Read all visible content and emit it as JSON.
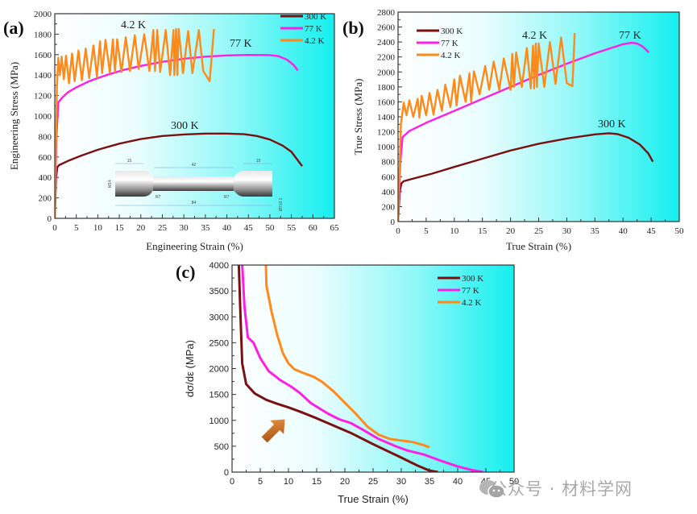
{
  "colors": {
    "c300K": "#7a1010",
    "c77K": "#ff1ee6",
    "c4K": "#ff8a1a",
    "bg_left": "#ffffff",
    "bg_right": "#18f0f0",
    "arrow": "#d8742a"
  },
  "watermark": {
    "text": "公众号 · 材料学网",
    "icon": "wechat-icon"
  },
  "chart_data": [
    {
      "panel": "(a)",
      "type": "line",
      "xlabel": "Engineering Strain (%)",
      "ylabel": "Engineering Stress (MPa)",
      "xlim": [
        0,
        65
      ],
      "ylim": [
        0,
        2000
      ],
      "xticks": [
        0,
        5,
        10,
        15,
        20,
        25,
        30,
        35,
        40,
        45,
        50,
        55,
        60,
        65
      ],
      "yticks": [
        0,
        200,
        400,
        600,
        800,
        1000,
        1200,
        1400,
        1600,
        1800,
        2000
      ],
      "legend": {
        "placement": "top-right",
        "entries": [
          "300 K",
          "77 K",
          "4.2 K"
        ]
      },
      "annotations": [
        {
          "text": "4.2 K",
          "x": 23,
          "y": 1870
        },
        {
          "text": "77 K",
          "x": 45,
          "y": 1650
        },
        {
          "text": "300 K",
          "x": 30,
          "y": 870
        }
      ],
      "inset": {
        "description": "dog-bone tensile specimen drawing",
        "dims": [
          "15",
          "42",
          "15",
          "R7",
          "R7",
          "84",
          "M14",
          "Ø7±0.1"
        ]
      },
      "series": [
        {
          "name": "300 K",
          "color_key": "c300K",
          "points": [
            [
              0,
              0
            ],
            [
              0.3,
              400
            ],
            [
              0.6,
              500
            ],
            [
              1,
              520
            ],
            [
              3,
              560
            ],
            [
              6,
              610
            ],
            [
              10,
              670
            ],
            [
              15,
              730
            ],
            [
              20,
              775
            ],
            [
              25,
              805
            ],
            [
              30,
              820
            ],
            [
              35,
              828
            ],
            [
              40,
              828
            ],
            [
              44,
              822
            ],
            [
              47,
              805
            ],
            [
              50,
              770
            ],
            [
              53,
              710
            ],
            [
              55,
              650
            ],
            [
              57.5,
              510
            ]
          ]
        },
        {
          "name": "77 K",
          "color_key": "c77K",
          "points": [
            [
              0,
              0
            ],
            [
              0.4,
              800
            ],
            [
              0.8,
              1130
            ],
            [
              1.5,
              1170
            ],
            [
              3,
              1230
            ],
            [
              5,
              1280
            ],
            [
              8,
              1340
            ],
            [
              12,
              1400
            ],
            [
              16,
              1450
            ],
            [
              20,
              1490
            ],
            [
              25,
              1530
            ],
            [
              30,
              1560
            ],
            [
              35,
              1580
            ],
            [
              40,
              1592
            ],
            [
              45,
              1597
            ],
            [
              50,
              1595
            ],
            [
              52,
              1585
            ],
            [
              54,
              1550
            ],
            [
              55.5,
              1500
            ],
            [
              56.5,
              1445
            ]
          ]
        },
        {
          "name": "4.2 K",
          "color_key": "c4K",
          "points": [
            [
              0,
              0
            ],
            [
              0.5,
              1300
            ],
            [
              0.8,
              1570
            ],
            [
              1.2,
              1400
            ],
            [
              1.6,
              1580
            ],
            [
              2.1,
              1360
            ],
            [
              2.6,
              1590
            ],
            [
              3.3,
              1320
            ],
            [
              4,
              1610
            ],
            [
              4.6,
              1340
            ],
            [
              5.5,
              1640
            ],
            [
              6.3,
              1350
            ],
            [
              7.2,
              1660
            ],
            [
              8,
              1370
            ],
            [
              9,
              1690
            ],
            [
              9.8,
              1380
            ],
            [
              10.5,
              1730
            ],
            [
              11,
              1420
            ],
            [
              11.8,
              1745
            ],
            [
              12.8,
              1420
            ],
            [
              13.5,
              1750
            ],
            [
              14,
              1430
            ],
            [
              14.5,
              1750
            ],
            [
              15.5,
              1430
            ],
            [
              16.5,
              1770
            ],
            [
              17.5,
              1440
            ],
            [
              18.6,
              1790
            ],
            [
              19.5,
              1460
            ],
            [
              20.8,
              1800
            ],
            [
              22,
              1440
            ],
            [
              22.9,
              1840
            ],
            [
              23.3,
              1440
            ],
            [
              23.8,
              1840
            ],
            [
              24.5,
              1430
            ],
            [
              25.8,
              1840
            ],
            [
              26.8,
              1400
            ],
            [
              27.6,
              1840
            ],
            [
              27.8,
              1400
            ],
            [
              28.2,
              1850
            ],
            [
              28.5,
              1400
            ],
            [
              28.8,
              1850
            ],
            [
              29.8,
              1420
            ],
            [
              31,
              1830
            ],
            [
              32,
              1420
            ],
            [
              33.5,
              1840
            ],
            [
              34.5,
              1440
            ],
            [
              36,
              1340
            ],
            [
              37,
              1850
            ]
          ]
        }
      ]
    },
    {
      "panel": "(b)",
      "type": "line",
      "xlabel": "True Strain (%)",
      "ylabel": "True Stress (MPa)",
      "xlim": [
        0,
        50
      ],
      "ylim": [
        0,
        2800
      ],
      "xticks": [
        0,
        5,
        10,
        15,
        20,
        25,
        30,
        35,
        40,
        45,
        50
      ],
      "yticks": [
        0,
        200,
        400,
        600,
        800,
        1000,
        1200,
        1400,
        1600,
        1800,
        2000,
        2200,
        2400,
        2600,
        2800
      ],
      "legend": {
        "placement": "top-left",
        "entries": [
          "300 K",
          "77 K",
          "4.2 K"
        ]
      },
      "annotations": [
        {
          "text": "4.2 K",
          "x": 24,
          "y": 2480
        },
        {
          "text": "77 K",
          "x": 41,
          "y": 2480
        },
        {
          "text": "300 K",
          "x": 38,
          "y": 1290
        }
      ],
      "series": [
        {
          "name": "300 K",
          "color_key": "c300K",
          "points": [
            [
              0,
              0
            ],
            [
              0.3,
              400
            ],
            [
              0.6,
              510
            ],
            [
              1,
              540
            ],
            [
              3,
              580
            ],
            [
              6,
              640
            ],
            [
              10,
              730
            ],
            [
              15,
              840
            ],
            [
              20,
              950
            ],
            [
              25,
              1040
            ],
            [
              30,
              1110
            ],
            [
              35,
              1165
            ],
            [
              37.5,
              1180
            ],
            [
              39,
              1170
            ],
            [
              41,
              1120
            ],
            [
              43,
              1030
            ],
            [
              44.5,
              910
            ],
            [
              45.3,
              800
            ]
          ]
        },
        {
          "name": "77 K",
          "color_key": "c77K",
          "points": [
            [
              0,
              0
            ],
            [
              0.4,
              800
            ],
            [
              0.8,
              1130
            ],
            [
              2,
              1210
            ],
            [
              5,
              1320
            ],
            [
              10,
              1480
            ],
            [
              15,
              1640
            ],
            [
              20,
              1800
            ],
            [
              25,
              1960
            ],
            [
              30,
              2110
            ],
            [
              35,
              2250
            ],
            [
              40,
              2370
            ],
            [
              41.5,
              2390
            ],
            [
              42.5,
              2380
            ],
            [
              43.5,
              2340
            ],
            [
              44.6,
              2260
            ]
          ]
        },
        {
          "name": "4.2 K",
          "color_key": "c4K",
          "points": [
            [
              0,
              0
            ],
            [
              0.5,
              1300
            ],
            [
              1,
              1590
            ],
            [
              1.5,
              1420
            ],
            [
              2,
              1620
            ],
            [
              2.7,
              1400
            ],
            [
              3.5,
              1640
            ],
            [
              3.8,
              1390
            ],
            [
              4.2,
              1680
            ],
            [
              5,
              1420
            ],
            [
              5.6,
              1720
            ],
            [
              6.3,
              1430
            ],
            [
              7,
              1760
            ],
            [
              7.8,
              1480
            ],
            [
              8.4,
              1830
            ],
            [
              9.3,
              1530
            ],
            [
              10,
              1900
            ],
            [
              10.4,
              1550
            ],
            [
              11,
              1950
            ],
            [
              12,
              1600
            ],
            [
              12.7,
              1980
            ],
            [
              13,
              1600
            ],
            [
              13.5,
              2010
            ],
            [
              14.5,
              1700
            ],
            [
              15.5,
              2080
            ],
            [
              16.2,
              1760
            ],
            [
              17,
              2140
            ],
            [
              18,
              1760
            ],
            [
              18.8,
              2180
            ],
            [
              20,
              1760
            ],
            [
              20.3,
              2240
            ],
            [
              20.6,
              1800
            ],
            [
              21,
              2260
            ],
            [
              22,
              1800
            ],
            [
              22.9,
              2320
            ],
            [
              23.6,
              1780
            ],
            [
              24,
              2350
            ],
            [
              24.2,
              1780
            ],
            [
              24.5,
              2380
            ],
            [
              24.7,
              1800
            ],
            [
              25,
              2380
            ],
            [
              26,
              1800
            ],
            [
              27,
              2400
            ],
            [
              28,
              1840
            ],
            [
              29,
              2460
            ],
            [
              30,
              1850
            ],
            [
              31,
              1810
            ],
            [
              31.4,
              2520
            ]
          ]
        }
      ]
    },
    {
      "panel": "(c)",
      "type": "line",
      "xlabel": "True Strain (%)",
      "ylabel": "dσ/dε (MPa)",
      "xlim": [
        0,
        50
      ],
      "ylim": [
        0,
        4000
      ],
      "xticks": [
        0,
        5,
        10,
        15,
        20,
        25,
        30,
        35,
        40,
        45,
        50
      ],
      "yticks": [
        0,
        500,
        1000,
        1500,
        2000,
        2500,
        3000,
        3500,
        4000
      ],
      "legend": {
        "placement": "top-right",
        "entries": [
          "300 K",
          "77 K",
          "4.2 K"
        ]
      },
      "annotations": [
        {
          "text": "arrow",
          "x": 8,
          "y": 750
        }
      ],
      "series": [
        {
          "name": "300 K",
          "color_key": "c300K",
          "points": [
            [
              1.2,
              4000
            ],
            [
              1.5,
              3000
            ],
            [
              1.8,
              2100
            ],
            [
              2.5,
              1700
            ],
            [
              4,
              1520
            ],
            [
              6,
              1400
            ],
            [
              8,
              1320
            ],
            [
              10,
              1250
            ],
            [
              12,
              1170
            ],
            [
              15,
              1040
            ],
            [
              18,
              900
            ],
            [
              21,
              760
            ],
            [
              25,
              540
            ],
            [
              30,
              280
            ],
            [
              33,
              120
            ],
            [
              35,
              30
            ],
            [
              36.5,
              0
            ]
          ]
        },
        {
          "name": "77 K",
          "color_key": "c77K",
          "points": [
            [
              1.8,
              4000
            ],
            [
              2.2,
              3200
            ],
            [
              2.8,
              2600
            ],
            [
              3.8,
              2500
            ],
            [
              5,
              2200
            ],
            [
              6.5,
              1950
            ],
            [
              8.5,
              1780
            ],
            [
              10.5,
              1650
            ],
            [
              12,
              1530
            ],
            [
              14,
              1330
            ],
            [
              17,
              1130
            ],
            [
              19,
              1020
            ],
            [
              21,
              950
            ],
            [
              23,
              830
            ],
            [
              26,
              640
            ],
            [
              29,
              500
            ],
            [
              31,
              420
            ],
            [
              34,
              340
            ],
            [
              37,
              220
            ],
            [
              40,
              110
            ],
            [
              42.5,
              40
            ],
            [
              44.5,
              0
            ]
          ]
        },
        {
          "name": "4.2 K",
          "color_key": "c4K",
          "points": [
            [
              6,
              4000
            ],
            [
              6.1,
              3600
            ],
            [
              7,
              3100
            ],
            [
              8,
              2650
            ],
            [
              9,
              2300
            ],
            [
              10,
              2100
            ],
            [
              11,
              1990
            ],
            [
              12.5,
              1920
            ],
            [
              14.5,
              1840
            ],
            [
              16,
              1740
            ],
            [
              18,
              1560
            ],
            [
              20,
              1340
            ],
            [
              22,
              1120
            ],
            [
              24,
              880
            ],
            [
              26,
              720
            ],
            [
              28,
              640
            ],
            [
              30,
              610
            ],
            [
              32,
              580
            ],
            [
              34,
              520
            ],
            [
              35,
              480
            ]
          ]
        }
      ]
    }
  ]
}
